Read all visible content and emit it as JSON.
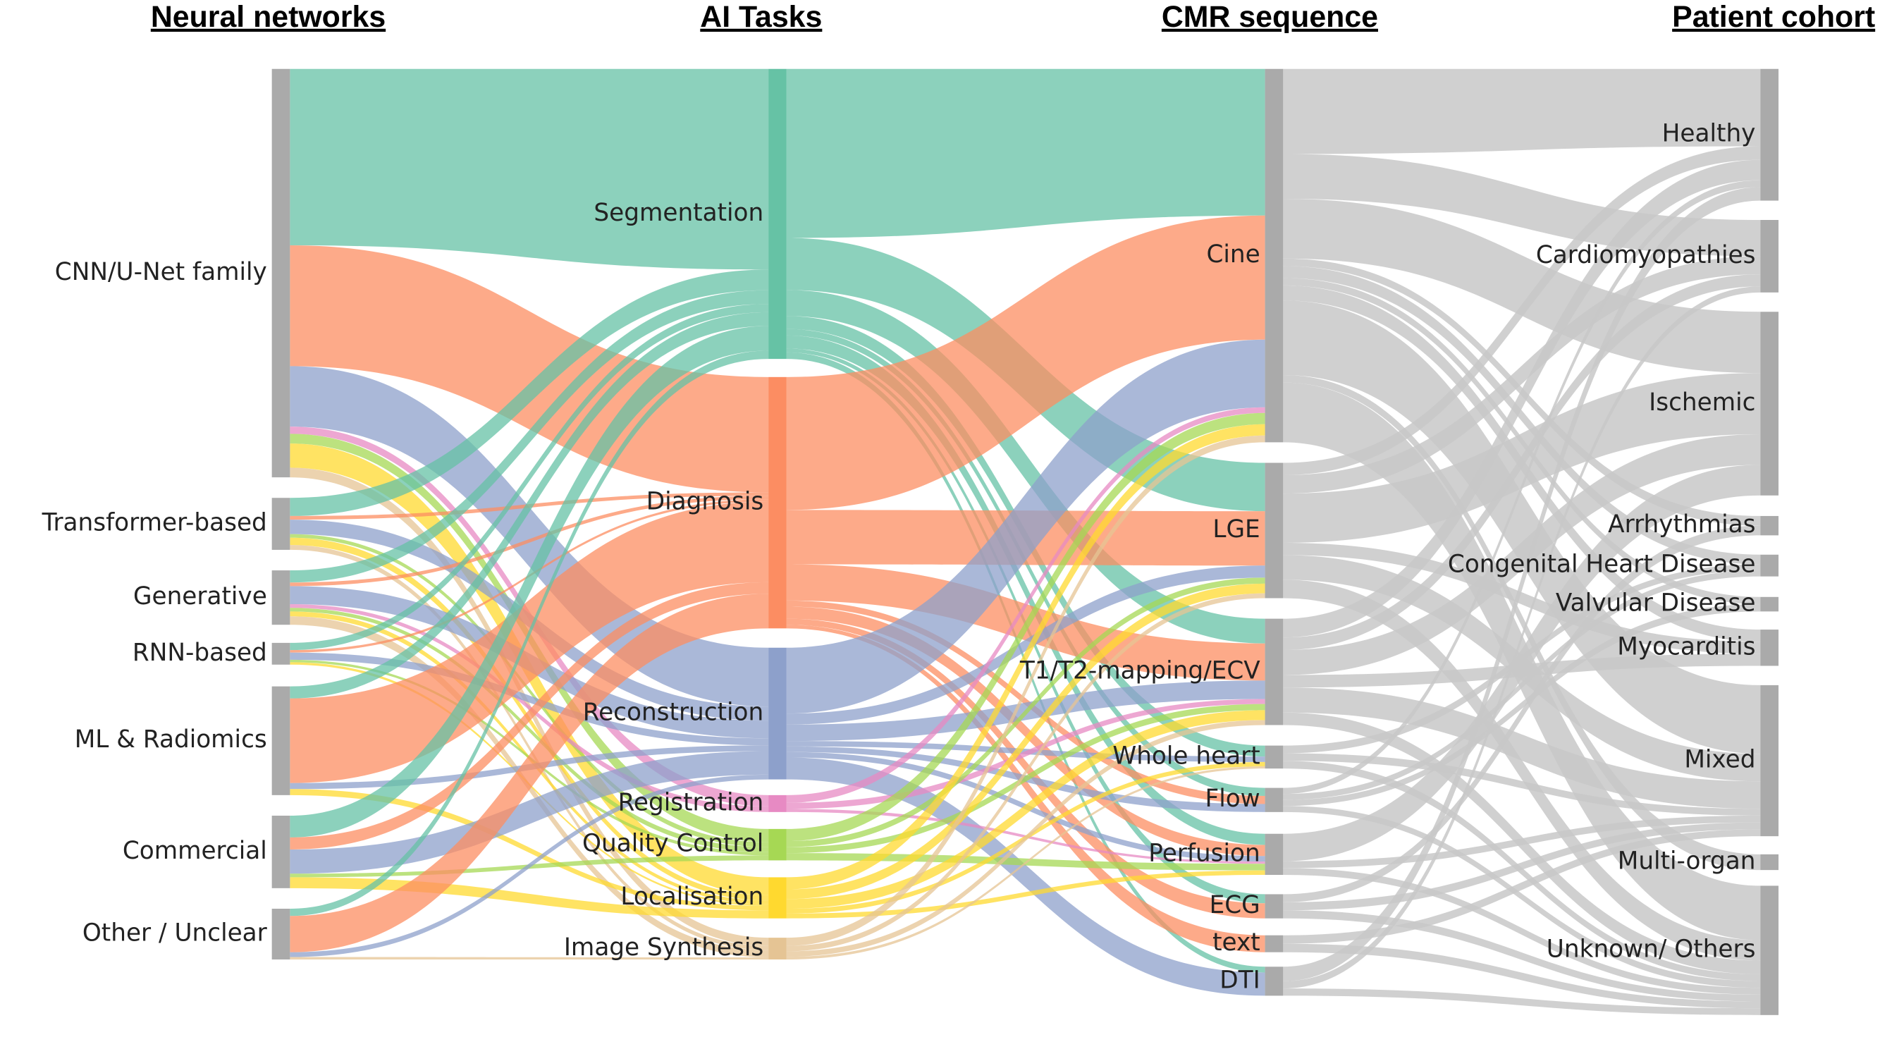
{
  "columns": [
    {
      "title": "Neural networks",
      "nodes": [
        "CNN/U-Net family",
        "Transformer-based",
        "Generative",
        "RNN-based",
        "ML & Radiomics",
        "Commercial",
        "Other / Unclear"
      ]
    },
    {
      "title": "AI Tasks",
      "nodes": [
        "Segmentation",
        "Diagnosis",
        "Reconstruction",
        "Registration",
        "Quality Control",
        "Localisation",
        "Image Synthesis"
      ]
    },
    {
      "title": "CMR sequence",
      "nodes": [
        "Cine",
        "LGE",
        "T1/T2-mapping/ECV",
        "Whole heart",
        "Flow",
        "Perfusion",
        "ECG",
        "text",
        "DTI"
      ]
    },
    {
      "title": "Patient cohort",
      "nodes": [
        "Healthy",
        "Cardiomyopathies",
        "Ischemic",
        "Arrhythmias",
        "Congenital Heart Disease",
        "Valvular Disease",
        "Myocarditis",
        "Mixed",
        "Multi-organ",
        "Unknown/ Others"
      ]
    }
  ]
}
